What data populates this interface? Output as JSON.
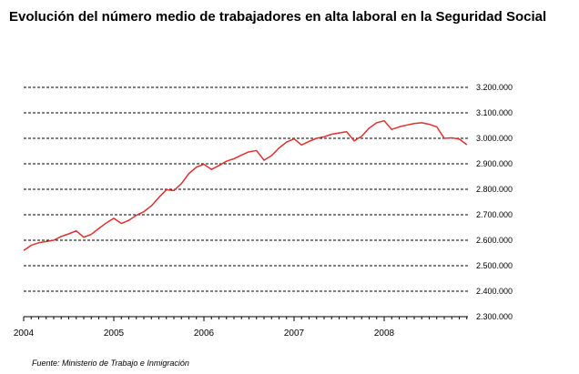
{
  "title": "Evolución del número medio de trabajadores en alta laboral en la Seguridad Social",
  "source": "Fuente: Ministerio de Trabajo e Inmigración",
  "chart_data": {
    "type": "line",
    "title": "Evolución del número medio de trabajadores en alta laboral en la Seguridad Social",
    "xlabel": "",
    "ylabel": "",
    "x_ticks": [
      "2004",
      "2005",
      "2006",
      "2007",
      "2008"
    ],
    "y_ticks": [
      "3.200.000",
      "3.100.000",
      "3.000.000",
      "2.900.000",
      "2.800.000",
      "2.700.000",
      "2.600.000",
      "2.500.000",
      "2.400.000",
      "2.300.000"
    ],
    "ylim": [
      2300000,
      3200000
    ],
    "grid": true,
    "line_color": "#e03030",
    "x": [
      "2004-01",
      "2004-02",
      "2004-03",
      "2004-04",
      "2004-05",
      "2004-06",
      "2004-07",
      "2004-08",
      "2004-09",
      "2004-10",
      "2004-11",
      "2004-12",
      "2005-01",
      "2005-02",
      "2005-03",
      "2005-04",
      "2005-05",
      "2005-06",
      "2005-07",
      "2005-08",
      "2005-09",
      "2005-10",
      "2005-11",
      "2005-12",
      "2006-01",
      "2006-02",
      "2006-03",
      "2006-04",
      "2006-05",
      "2006-06",
      "2006-07",
      "2006-08",
      "2006-09",
      "2006-10",
      "2006-11",
      "2006-12",
      "2007-01",
      "2007-02",
      "2007-03",
      "2007-04",
      "2007-05",
      "2007-06",
      "2007-07",
      "2007-08",
      "2007-09",
      "2007-10",
      "2007-11",
      "2007-12",
      "2008-01",
      "2008-02",
      "2008-03",
      "2008-04",
      "2008-05",
      "2008-06",
      "2008-07",
      "2008-08",
      "2008-09",
      "2008-10",
      "2008-11",
      "2008-12"
    ],
    "series": [
      {
        "values": [
          2560000,
          2580000,
          2590000,
          2595000,
          2600000,
          2615000,
          2625000,
          2637000,
          2612000,
          2623000,
          2646000,
          2668000,
          2686000,
          2666000,
          2678000,
          2698000,
          2712000,
          2735000,
          2768000,
          2798000,
          2795000,
          2822000,
          2862000,
          2887000,
          2898000,
          2878000,
          2893000,
          2910000,
          2920000,
          2934000,
          2947000,
          2952000,
          2914000,
          2932000,
          2962000,
          2985000,
          2998000,
          2974000,
          2988000,
          3000000,
          3006000,
          3016000,
          3021000,
          3026000,
          2990000,
          3008000,
          3040000,
          3061000,
          3069000,
          3035000,
          3045000,
          3052000,
          3058000,
          3061000,
          3055000,
          3045000,
          3000000,
          3002000,
          2997000,
          2975000
        ]
      }
    ]
  }
}
